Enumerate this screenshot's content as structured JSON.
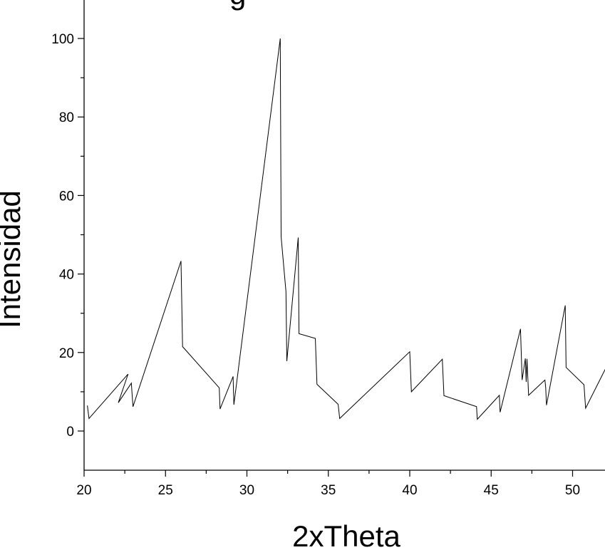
{
  "chart_data": {
    "type": "line",
    "title_fragment": "g",
    "title_color": "#0000ff",
    "xlabel": "2xTheta",
    "ylabel": "Intensidad",
    "xlim": [
      20,
      52
    ],
    "ylim": [
      -10,
      110
    ],
    "xticks": [
      20,
      25,
      30,
      35,
      40,
      45,
      50
    ],
    "yticks": [
      0,
      20,
      40,
      60,
      80,
      100
    ],
    "line_color": "#000000",
    "grid": false,
    "series": [
      {
        "x": [
          20.2,
          20.3,
          22.7,
          22.1,
          22.9,
          23.0,
          25.95,
          26.05,
          28.3,
          28.35,
          29.15,
          29.2,
          32.05,
          32.1,
          32.4,
          32.45,
          33.15,
          33.2,
          34.2,
          34.3,
          35.6,
          35.7,
          40.0,
          40.1,
          42.0,
          42.1,
          44.1,
          44.15,
          45.5,
          45.55,
          46.8,
          46.9,
          47.1,
          47.15,
          47.2,
          47.3,
          48.3,
          48.35,
          48.4,
          49.55,
          49.6,
          50.7,
          50.8,
          52.0
        ],
        "y": [
          6.5,
          3.2,
          14.5,
          7.2,
          12.2,
          6.2,
          43.3,
          21.5,
          11.0,
          5.6,
          13.9,
          6.7,
          100.0,
          49.5,
          35.5,
          17.8,
          49.3,
          24.8,
          23.6,
          11.9,
          6.8,
          3.2,
          20.2,
          10.0,
          18.3,
          9.0,
          6.2,
          3.0,
          9.1,
          4.8,
          26.0,
          13.0,
          18.5,
          12.5,
          18.4,
          9.1,
          13.0,
          11.0,
          6.6,
          32.0,
          16.2,
          11.8,
          5.8,
          15.7
        ]
      }
    ]
  }
}
